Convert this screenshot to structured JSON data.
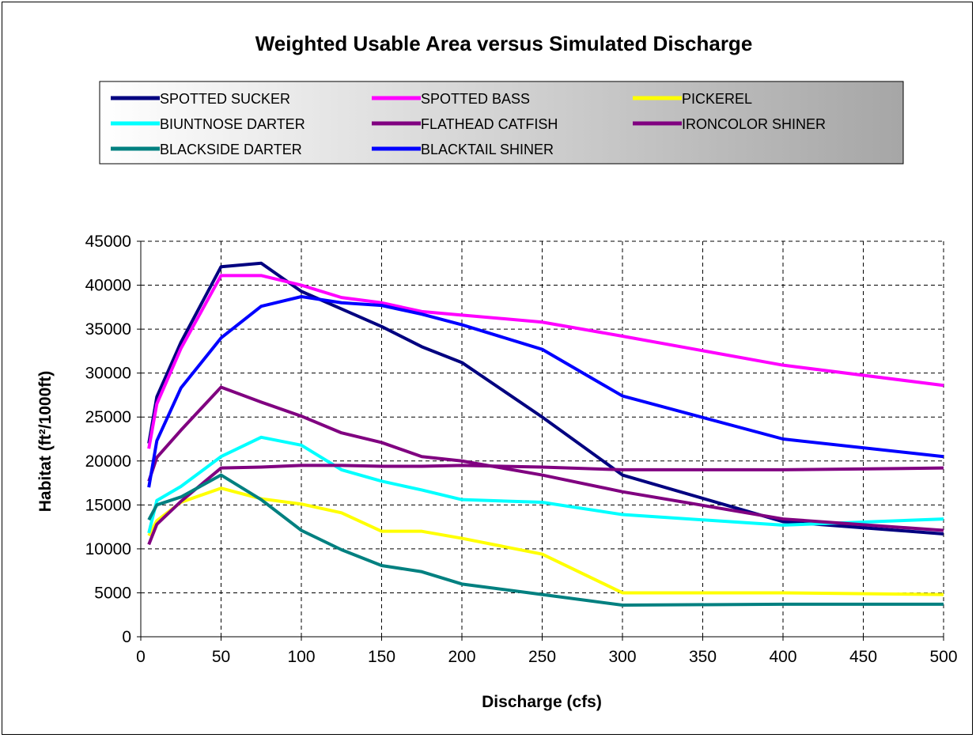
{
  "chart_data": {
    "type": "line",
    "title": "Weighted Usable Area versus Simulated Discharge",
    "xlabel": "Discharge (cfs)",
    "ylabel": "Habitat (ft²/1000ft)",
    "xlim": [
      0,
      500
    ],
    "ylim": [
      0,
      45000
    ],
    "x_ticks": [
      0,
      50,
      100,
      150,
      200,
      250,
      300,
      350,
      400,
      450,
      500
    ],
    "y_ticks": [
      0,
      5000,
      10000,
      15000,
      20000,
      25000,
      30000,
      35000,
      40000,
      45000
    ],
    "grid": "dashed",
    "legend_position": "top",
    "x": [
      5,
      10,
      25,
      50,
      75,
      100,
      125,
      150,
      175,
      200,
      250,
      300,
      400,
      500
    ],
    "series": [
      {
        "name": "SPOTTED SUCKER",
        "color": "#000080",
        "values": [
          22000,
          27300,
          33500,
          42100,
          42500,
          39300,
          37300,
          35300,
          33000,
          31200,
          25000,
          18400,
          13100,
          11700
        ]
      },
      {
        "name": "SPOTTED BASS",
        "color": "#ff00ff",
        "values": [
          21400,
          26500,
          32800,
          41100,
          41100,
          40000,
          38600,
          38000,
          37000,
          36600,
          35800,
          34200,
          30900,
          28600
        ]
      },
      {
        "name": "PICKEREL",
        "color": "#ffff00",
        "values": [
          11500,
          13200,
          15300,
          16900,
          15700,
          15100,
          14100,
          12000,
          12000,
          11200,
          9400,
          5000,
          5000,
          4800
        ]
      },
      {
        "name": "BIUNTNOSE DARTER",
        "color": "#00ffff",
        "values": [
          11800,
          15500,
          17100,
          20500,
          22700,
          21800,
          19000,
          17700,
          16700,
          15600,
          15300,
          13900,
          12700,
          13400
        ]
      },
      {
        "name": "FLATHEAD CATFISH",
        "color": "#800080",
        "values": [
          17700,
          20400,
          23500,
          28400,
          26700,
          25100,
          23200,
          22100,
          20500,
          20000,
          18400,
          16500,
          13400,
          12100
        ]
      },
      {
        "name": "IRONCOLOR SHINER",
        "color": "#800080",
        "values": [
          10500,
          12800,
          15400,
          19200,
          19300,
          19500,
          19500,
          19400,
          19400,
          19500,
          19300,
          19000,
          19000,
          19200
        ]
      },
      {
        "name": "BLACKSIDE DARTER",
        "color": "#008080",
        "values": [
          13300,
          15000,
          15900,
          18400,
          15600,
          12100,
          9900,
          8100,
          7400,
          6000,
          4800,
          3600,
          3700,
          3700
        ]
      },
      {
        "name": "BLACKTAIL SHINER",
        "color": "#0000ff",
        "values": [
          17000,
          22300,
          28300,
          34000,
          37600,
          38700,
          38000,
          37700,
          36700,
          35500,
          32700,
          27400,
          22500,
          20500
        ]
      }
    ]
  }
}
